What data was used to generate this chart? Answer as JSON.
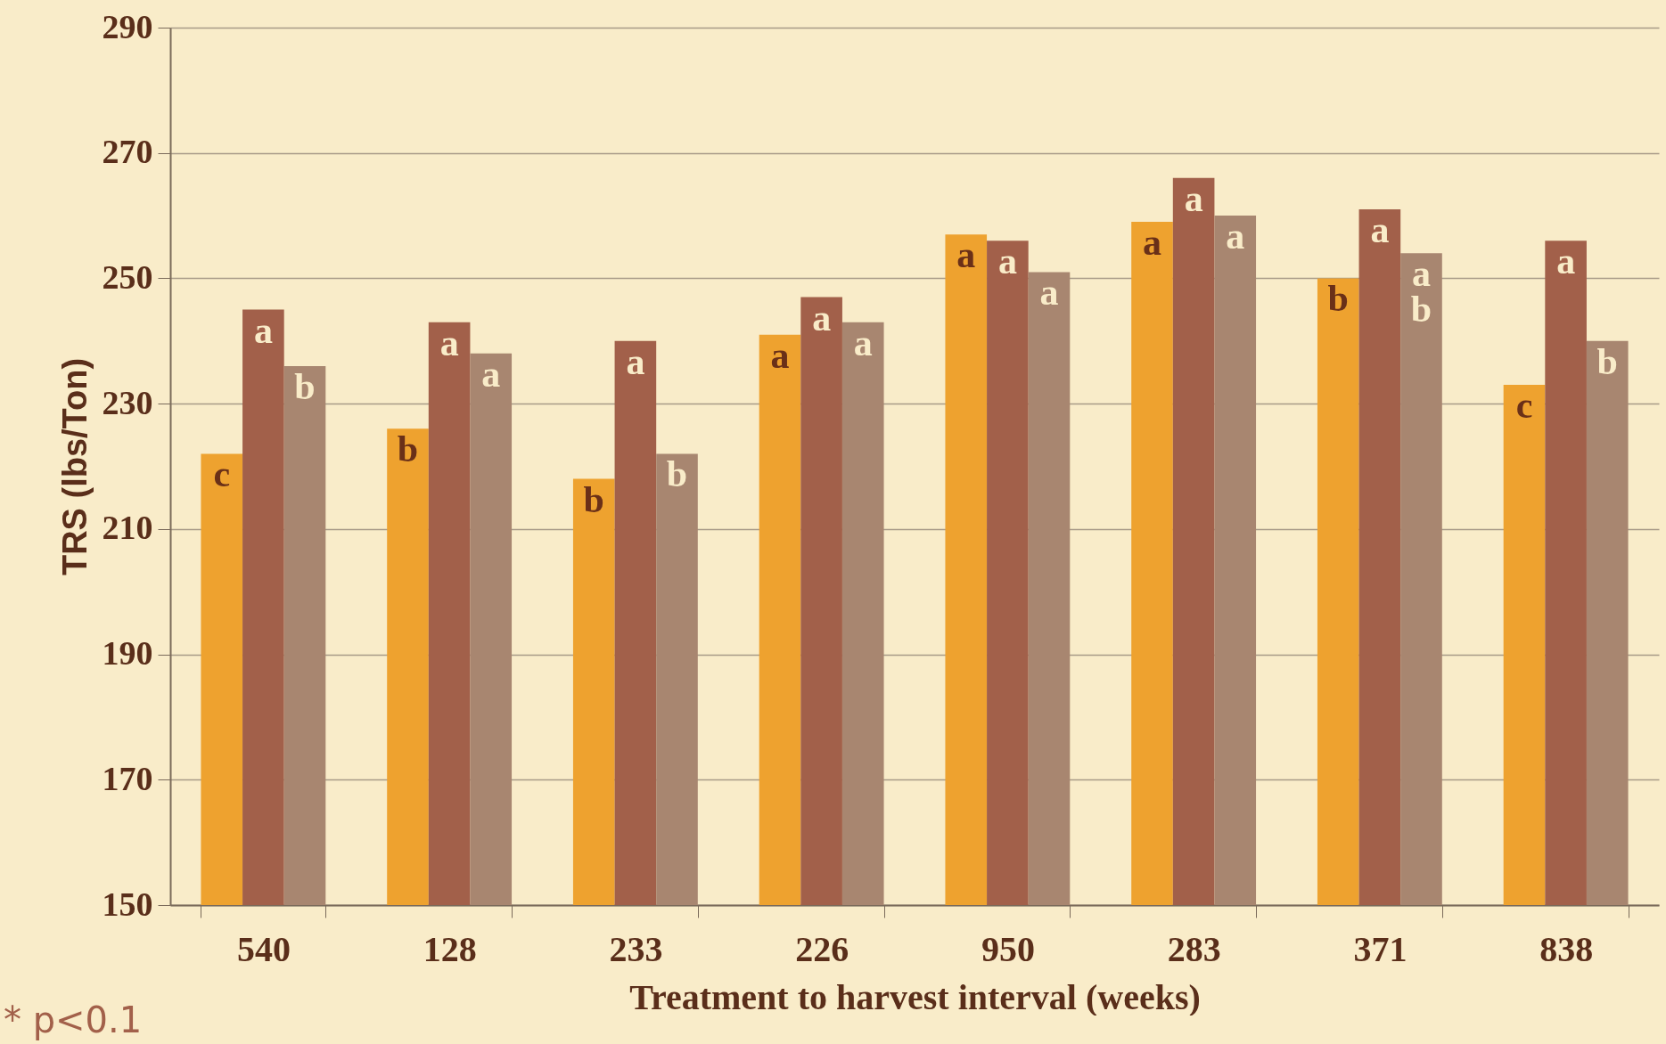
{
  "chart_data": {
    "type": "bar",
    "xlabel": "Treatment to harvest interval (weeks)",
    "ylabel": "TRS (lbs/Ton)",
    "categories": [
      "540",
      "128",
      "233",
      "226",
      "950",
      "283",
      "371",
      "838"
    ],
    "series": [
      {
        "color": "#eea22f",
        "values": [
          222,
          226,
          218,
          241,
          257,
          259,
          250,
          233
        ],
        "value_labels": [
          "c",
          "b",
          "b",
          "a",
          "a",
          "a",
          "b",
          "c"
        ]
      },
      {
        "color": "#a2604a",
        "values": [
          245,
          243,
          240,
          247,
          256,
          266,
          261,
          256
        ],
        "value_labels": [
          "a",
          "a",
          "a",
          "a",
          "a",
          "a",
          "a",
          "a"
        ]
      },
      {
        "color": "#a88670",
        "values": [
          236,
          238,
          222,
          243,
          251,
          260,
          254,
          240
        ],
        "value_labels": [
          "b",
          "a",
          "b",
          "a",
          "a",
          "a",
          "a\nb",
          "b"
        ]
      }
    ],
    "ylim": [
      150,
      290
    ],
    "yticks": [
      150,
      170,
      190,
      210,
      230,
      250,
      270,
      290
    ],
    "grid": "y",
    "legend": false,
    "annotations": [
      "* p<0.1"
    ]
  }
}
